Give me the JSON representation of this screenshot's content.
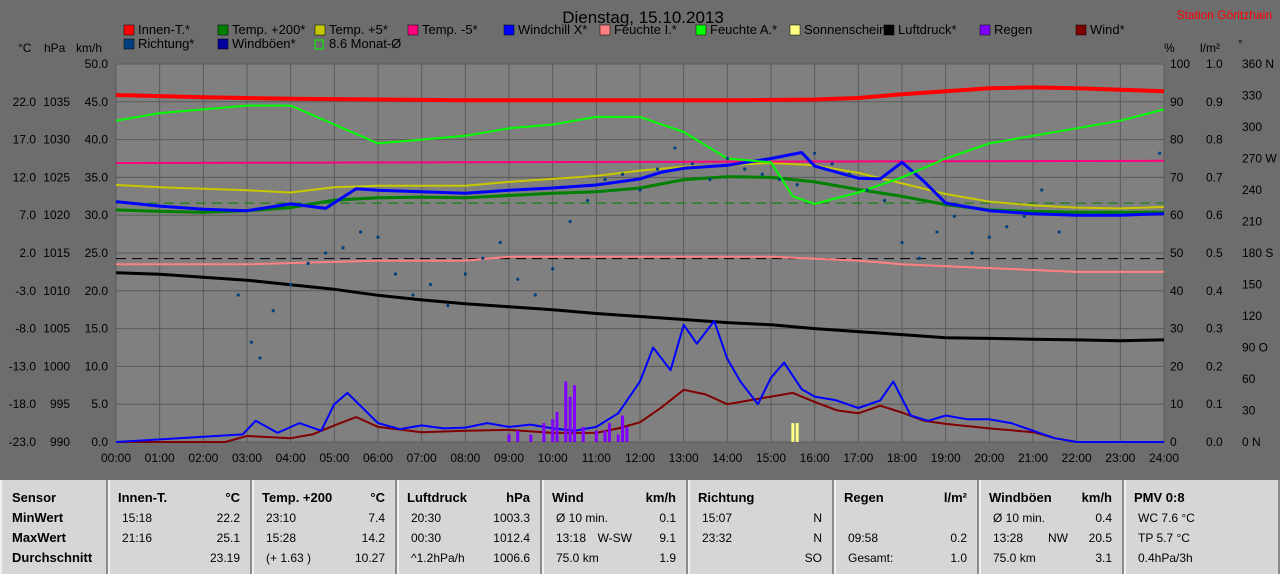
{
  "title": "Dienstag, 15.10.2013",
  "station": "Station Göritzhain",
  "axis_units": {
    "temp": "°C",
    "pressure": "hPa",
    "wind": "km/h",
    "humidity": "%",
    "rain": "l/m²",
    "direction": "°"
  },
  "legend": [
    {
      "label": "Innen-T.*",
      "color": "#ff0000"
    },
    {
      "label": "Temp. +200*",
      "color": "#008000"
    },
    {
      "label": "Temp. +5*",
      "color": "#c8c800"
    },
    {
      "label": "Temp. -5*",
      "color": "#ff0080"
    },
    {
      "label": "Windchill X*",
      "color": "#0000ff"
    },
    {
      "label": "Feuchte I.*",
      "color": "#ff8080"
    },
    {
      "label": "Feuchte A.*",
      "color": "#00ff00"
    },
    {
      "label": "Sonnenschein",
      "color": "#ffff80"
    },
    {
      "label": "Luftdruck*",
      "color": "#000000"
    },
    {
      "label": "Regen",
      "color": "#8000ff"
    },
    {
      "label": "Wind*",
      "color": "#800000"
    },
    {
      "label": "Richtung*",
      "color": "#004080"
    },
    {
      "label": "Windböen*",
      "color": "#0000a0"
    },
    {
      "label": "8.6 Monat-Ø",
      "color": "#00ff00"
    }
  ],
  "chart_data": {
    "type": "line",
    "title": "Dienstag, 15.10.2013",
    "x_ticks": [
      "00:00",
      "01:00",
      "02:00",
      "03:00",
      "04:00",
      "05:00",
      "06:00",
      "07:00",
      "08:00",
      "09:00",
      "10:00",
      "11:00",
      "12:00",
      "13:00",
      "14:00",
      "15:00",
      "16:00",
      "17:00",
      "18:00",
      "19:00",
      "20:00",
      "21:00",
      "22:00",
      "23:00",
      "24:00"
    ],
    "y_temp_ticks": [
      "22.0",
      "17.0",
      "12.0",
      "7.0",
      "2.0",
      "-3.0",
      "-8.0",
      "-13.0",
      "-18.0",
      "-23.0"
    ],
    "y_pressure_ticks": [
      "1035",
      "1030",
      "1025",
      "1020",
      "1015",
      "1010",
      "1005",
      "1000",
      "995",
      "990"
    ],
    "y_wind_ticks": [
      "50.0",
      "45.0",
      "40.0",
      "35.0",
      "30.0",
      "25.0",
      "20.0",
      "15.0",
      "10.0",
      "5.0",
      "0.0"
    ],
    "y_humidity_ticks": [
      "100",
      "90",
      "80",
      "70",
      "60",
      "50",
      "40",
      "30",
      "20",
      "10",
      "0"
    ],
    "y_rain_ticks": [
      "1.0",
      "0.9",
      "0.8",
      "0.7",
      "0.6",
      "0.5",
      "0.4",
      "0.3",
      "0.2",
      "0.1",
      "0.0"
    ],
    "y_dir_ticks": [
      "360 N",
      "330",
      "300",
      "270 W",
      "240",
      "210",
      "180 S",
      "150",
      "120",
      "90 O",
      "60",
      "30",
      "0  N"
    ],
    "ylim_temp": [
      -23,
      27
    ],
    "ylim_pressure": [
      990,
      1040
    ],
    "ylim_wind": [
      0,
      50
    ],
    "ylim_humidity": [
      0,
      100
    ],
    "ylim_rain": [
      0,
      1
    ],
    "ylim_dir": [
      0,
      360
    ],
    "grid": true,
    "series": [
      {
        "name": "Innen-T.*",
        "axis": "temp",
        "color": "#ff0000",
        "width": 4,
        "x": [
          0,
          2,
          4,
          6,
          8,
          10,
          12,
          14,
          16,
          17,
          18,
          19,
          20,
          21,
          22,
          23,
          24
        ],
        "y": [
          22.9,
          22.6,
          22.4,
          22.3,
          22.2,
          22.2,
          22.2,
          22.2,
          22.3,
          22.5,
          23.0,
          23.4,
          23.8,
          23.9,
          23.8,
          23.6,
          23.4
        ]
      },
      {
        "name": "Temp. +200*",
        "axis": "temp",
        "color": "#008000",
        "width": 3,
        "x": [
          0,
          1,
          2,
          3,
          4,
          5,
          6,
          7,
          8,
          9,
          10,
          11,
          12,
          13,
          14,
          15,
          16,
          17,
          18,
          19,
          20,
          21,
          22,
          23,
          24
        ],
        "y": [
          7.7,
          7.5,
          7.4,
          7.6,
          8.0,
          9.0,
          9.3,
          9.4,
          9.3,
          9.6,
          9.9,
          10.1,
          10.6,
          11.7,
          12.1,
          12.0,
          11.4,
          10.4,
          9.5,
          8.4,
          7.7,
          7.5,
          7.4,
          7.4,
          7.4
        ]
      },
      {
        "name": "Temp. +5*",
        "axis": "temp",
        "color": "#c8c800",
        "width": 2,
        "x": [
          0,
          1,
          2,
          3,
          4,
          5,
          6,
          7,
          8,
          9,
          10,
          11,
          12,
          13,
          14,
          15,
          16,
          17,
          18,
          19,
          20,
          21,
          22,
          23,
          24
        ],
        "y": [
          11.0,
          10.7,
          10.5,
          10.3,
          10.0,
          10.7,
          10.9,
          10.9,
          10.9,
          11.4,
          11.8,
          12.2,
          12.9,
          13.4,
          13.6,
          13.9,
          13.6,
          12.6,
          11.2,
          9.8,
          8.8,
          8.3,
          8.0,
          7.9,
          8.1
        ]
      },
      {
        "name": "Temp. -5*",
        "axis": "temp",
        "color": "#ff0080",
        "width": 2,
        "x": [
          0,
          24
        ],
        "y": [
          13.9,
          14.2
        ]
      },
      {
        "name": "Windchill X*",
        "axis": "temp",
        "color": "#0000ff",
        "width": 3,
        "x": [
          0,
          1,
          2,
          3,
          4,
          4.8,
          5.5,
          6,
          7,
          8,
          9,
          10,
          11,
          12,
          12.5,
          13,
          14,
          15,
          15.7,
          16,
          17,
          17.5,
          18,
          18.5,
          19,
          20,
          21,
          22,
          23,
          24
        ],
        "y": [
          8.8,
          8.2,
          7.8,
          7.6,
          8.5,
          7.9,
          10.5,
          10.3,
          10.1,
          9.9,
          10.3,
          10.6,
          11.0,
          11.8,
          12.7,
          13.2,
          13.6,
          14.5,
          15.3,
          13.5,
          11.9,
          11.8,
          14.0,
          11.5,
          8.6,
          7.6,
          7.2,
          7.0,
          7.0,
          7.2
        ]
      },
      {
        "name": "Feuchte I.*",
        "axis": "humidity",
        "color": "#ff8080",
        "width": 2,
        "x": [
          0,
          3,
          6,
          8,
          9,
          12,
          15,
          17,
          18,
          20,
          22,
          24
        ],
        "y": [
          47,
          47,
          48,
          48,
          49,
          49,
          49,
          48,
          47,
          46,
          45,
          45
        ]
      },
      {
        "name": "Feuchte A.*",
        "axis": "humidity",
        "color": "#00ff00",
        "width": 2,
        "x": [
          0,
          1,
          2,
          3,
          4,
          5,
          6,
          7,
          8,
          9,
          10,
          11,
          12,
          13,
          14,
          15,
          15.5,
          16,
          17,
          18,
          19,
          20,
          21,
          22,
          23,
          24
        ],
        "y": [
          85,
          87,
          88,
          89,
          89,
          84,
          79,
          80,
          81,
          83,
          84,
          86,
          86,
          82,
          75,
          74,
          65,
          63,
          66,
          70,
          75,
          79,
          81,
          83,
          85,
          88
        ]
      },
      {
        "name": "Luftdruck*",
        "axis": "pressure",
        "color": "#000000",
        "width": 3,
        "x": [
          0,
          1,
          2,
          3,
          4,
          5,
          6,
          7,
          8,
          9,
          10,
          11,
          12,
          13,
          14,
          15,
          16,
          17,
          18,
          19,
          20,
          21,
          22,
          23,
          24
        ],
        "y": [
          1012.4,
          1012.2,
          1011.8,
          1011.4,
          1010.8,
          1010.2,
          1009.4,
          1008.8,
          1008.3,
          1007.9,
          1007.5,
          1007.0,
          1006.6,
          1006.2,
          1005.8,
          1005.5,
          1005.0,
          1004.6,
          1004.2,
          1003.8,
          1003.7,
          1003.6,
          1003.5,
          1003.4,
          1003.5
        ]
      },
      {
        "name": "Wind*",
        "axis": "wind",
        "color": "#800000",
        "width": 2,
        "x": [
          0,
          2.5,
          3,
          4,
          4.5,
          5,
          5.5,
          6,
          7,
          8,
          9,
          10,
          11,
          11.5,
          12,
          12.5,
          13,
          13.5,
          14,
          14.5,
          15,
          15.5,
          16,
          16.5,
          17,
          17.5,
          18,
          18.5,
          19,
          19.5,
          20,
          21,
          21.5,
          22,
          24
        ],
        "y": [
          0,
          0,
          0.8,
          0.5,
          1.0,
          2.2,
          3.3,
          2.0,
          1.3,
          1.5,
          1.6,
          1.2,
          1.2,
          1.8,
          2.6,
          4.6,
          6.9,
          6.3,
          5.0,
          5.5,
          6.0,
          6.5,
          5.3,
          4.2,
          3.8,
          4.8,
          3.9,
          2.8,
          2.4,
          2.1,
          1.8,
          1.3,
          0.5,
          0,
          0
        ]
      },
      {
        "name": "Windböen*",
        "axis": "wind",
        "color": "#0000ff",
        "width": 2,
        "x": [
          0,
          2.9,
          3.2,
          3.7,
          4.2,
          4.7,
          5,
          5.3,
          5.7,
          6,
          6.5,
          7,
          7.5,
          8,
          8.5,
          9,
          9.5,
          10,
          10.5,
          11,
          11.5,
          12,
          12.3,
          12.7,
          13,
          13.3,
          13.7,
          14,
          14.3,
          14.7,
          15,
          15.3,
          15.7,
          16,
          16.5,
          17,
          17.5,
          17.8,
          18.2,
          18.6,
          19,
          19.5,
          20,
          20.5,
          21,
          21.5,
          22,
          24
        ],
        "y": [
          0,
          1.0,
          2.8,
          1.2,
          2.5,
          1.5,
          5.0,
          6.5,
          4.2,
          2.5,
          1.7,
          2.2,
          1.8,
          1.9,
          2.5,
          2.0,
          2.3,
          1.8,
          1.5,
          2.0,
          3.8,
          8.0,
          12.5,
          9.5,
          15.5,
          13.0,
          16.0,
          11.0,
          8.0,
          5.0,
          8.5,
          10.5,
          7.0,
          6.0,
          5.5,
          4.5,
          5.5,
          8.0,
          3.5,
          2.8,
          3.5,
          3.0,
          3.0,
          2.5,
          1.5,
          0.5,
          0,
          0
        ]
      },
      {
        "name": "Regen",
        "axis": "rain",
        "color": "#8000ff",
        "width": 3,
        "type": "bars",
        "x": [
          9.0,
          9.2,
          9.5,
          9.8,
          10.0,
          10.1,
          10.3,
          10.4,
          10.5,
          10.7,
          11.0,
          11.2,
          11.3,
          11.5,
          11.6,
          11.7
        ],
        "y": [
          0.02,
          0.03,
          0.02,
          0.05,
          0.06,
          0.08,
          0.16,
          0.12,
          0.15,
          0.04,
          0.03,
          0.03,
          0.05,
          0.02,
          0.07,
          0.04
        ]
      },
      {
        "name": "Sonnenschein",
        "axis": "rain",
        "color": "#ffff80",
        "width": 3,
        "type": "bars",
        "x": [
          15.5,
          15.6
        ],
        "y": [
          0.05,
          0.05
        ]
      },
      {
        "name": "Richtung*",
        "axis": "dir",
        "color": "#004080",
        "type": "dots",
        "x": [
          2.8,
          3.1,
          3.3,
          3.6,
          4.0,
          4.4,
          4.8,
          5.2,
          5.6,
          6.0,
          6.4,
          6.8,
          7.2,
          7.6,
          8.0,
          8.4,
          8.8,
          9.2,
          9.6,
          10.0,
          10.4,
          10.8,
          11.2,
          11.6,
          12.0,
          12.4,
          12.8,
          13.2,
          13.6,
          14.0,
          14.4,
          14.8,
          15.2,
          15.6,
          16.0,
          16.4,
          16.8,
          17.2,
          17.6,
          18.0,
          18.4,
          18.8,
          19.2,
          19.6,
          20.0,
          20.4,
          20.8,
          21.2,
          21.6,
          23.9
        ],
        "y": [
          140,
          95,
          80,
          125,
          150,
          170,
          180,
          185,
          200,
          195,
          160,
          140,
          150,
          130,
          160,
          175,
          190,
          155,
          140,
          165,
          210,
          230,
          250,
          255,
          240,
          260,
          280,
          265,
          250,
          270,
          260,
          255,
          250,
          245,
          275,
          265,
          255,
          240,
          230,
          190,
          175,
          200,
          215,
          180,
          195,
          205,
          215,
          240,
          200,
          275
        ]
      }
    ],
    "reference_lines": [
      {
        "name": "8.6 Monat-Ø",
        "axis": "temp",
        "value": 8.6,
        "color": "#008000",
        "style": "dashed"
      },
      {
        "axis": "humidity",
        "value": 48.5,
        "color": "#000000",
        "style": "dashed"
      }
    ]
  },
  "summary": {
    "row_labels": {
      "sensor": "Sensor",
      "min": "MinWert",
      "max": "MaxWert",
      "avg": "Durchschnitt"
    },
    "cols": [
      {
        "title": "Innen-T.",
        "unit": "°C",
        "rows": [
          [
            "15:18",
            "",
            "22.2"
          ],
          [
            "21:16",
            "",
            "25.1"
          ],
          [
            "",
            "",
            "23.19"
          ]
        ]
      },
      {
        "title": "Temp. +200",
        "unit": "°C",
        "rows": [
          [
            "23:10",
            "",
            "7.4"
          ],
          [
            "15:28",
            "",
            "14.2"
          ],
          [
            "(+ 1.63 )",
            "",
            "10.27"
          ]
        ]
      },
      {
        "title": "Luftdruck",
        "unit": "hPa",
        "rows": [
          [
            "20:30",
            "",
            "1003.3"
          ],
          [
            "00:30",
            "",
            "1012.4"
          ],
          [
            "^1.2hPa/h",
            "",
            "1006.6"
          ]
        ]
      },
      {
        "title": "Wind",
        "unit": "km/h",
        "rows": [
          [
            "Ø 10 min.",
            "",
            "0.1"
          ],
          [
            "13:18",
            "W-SW",
            "9.1"
          ],
          [
            "75.0 km",
            "",
            "1.9"
          ]
        ]
      },
      {
        "title": "Richtung",
        "unit": "",
        "rows": [
          [
            "15:07",
            "",
            "N"
          ],
          [
            "23:32",
            "",
            "N"
          ],
          [
            "",
            "",
            "SO"
          ]
        ]
      },
      {
        "title": "Regen",
        "unit": "l/m²",
        "rows": [
          [
            "",
            "",
            ""
          ],
          [
            "09:58",
            "",
            "0.2"
          ],
          [
            "Gesamt:",
            "",
            "1.0"
          ]
        ]
      },
      {
        "title": "Windböen",
        "unit": "km/h",
        "rows": [
          [
            "Ø 10 min.",
            "",
            "0.4"
          ],
          [
            "13:28",
            "NW",
            "20.5"
          ],
          [
            "75.0 km",
            "",
            "3.1"
          ]
        ]
      },
      {
        "title": "PMV 0:8",
        "unit": "",
        "rows": [
          [
            "WC 7.6 °C",
            "",
            ""
          ],
          [
            "TP 5.7 °C",
            "",
            ""
          ],
          [
            "0.4hPa/3h",
            "",
            ""
          ]
        ]
      }
    ]
  }
}
